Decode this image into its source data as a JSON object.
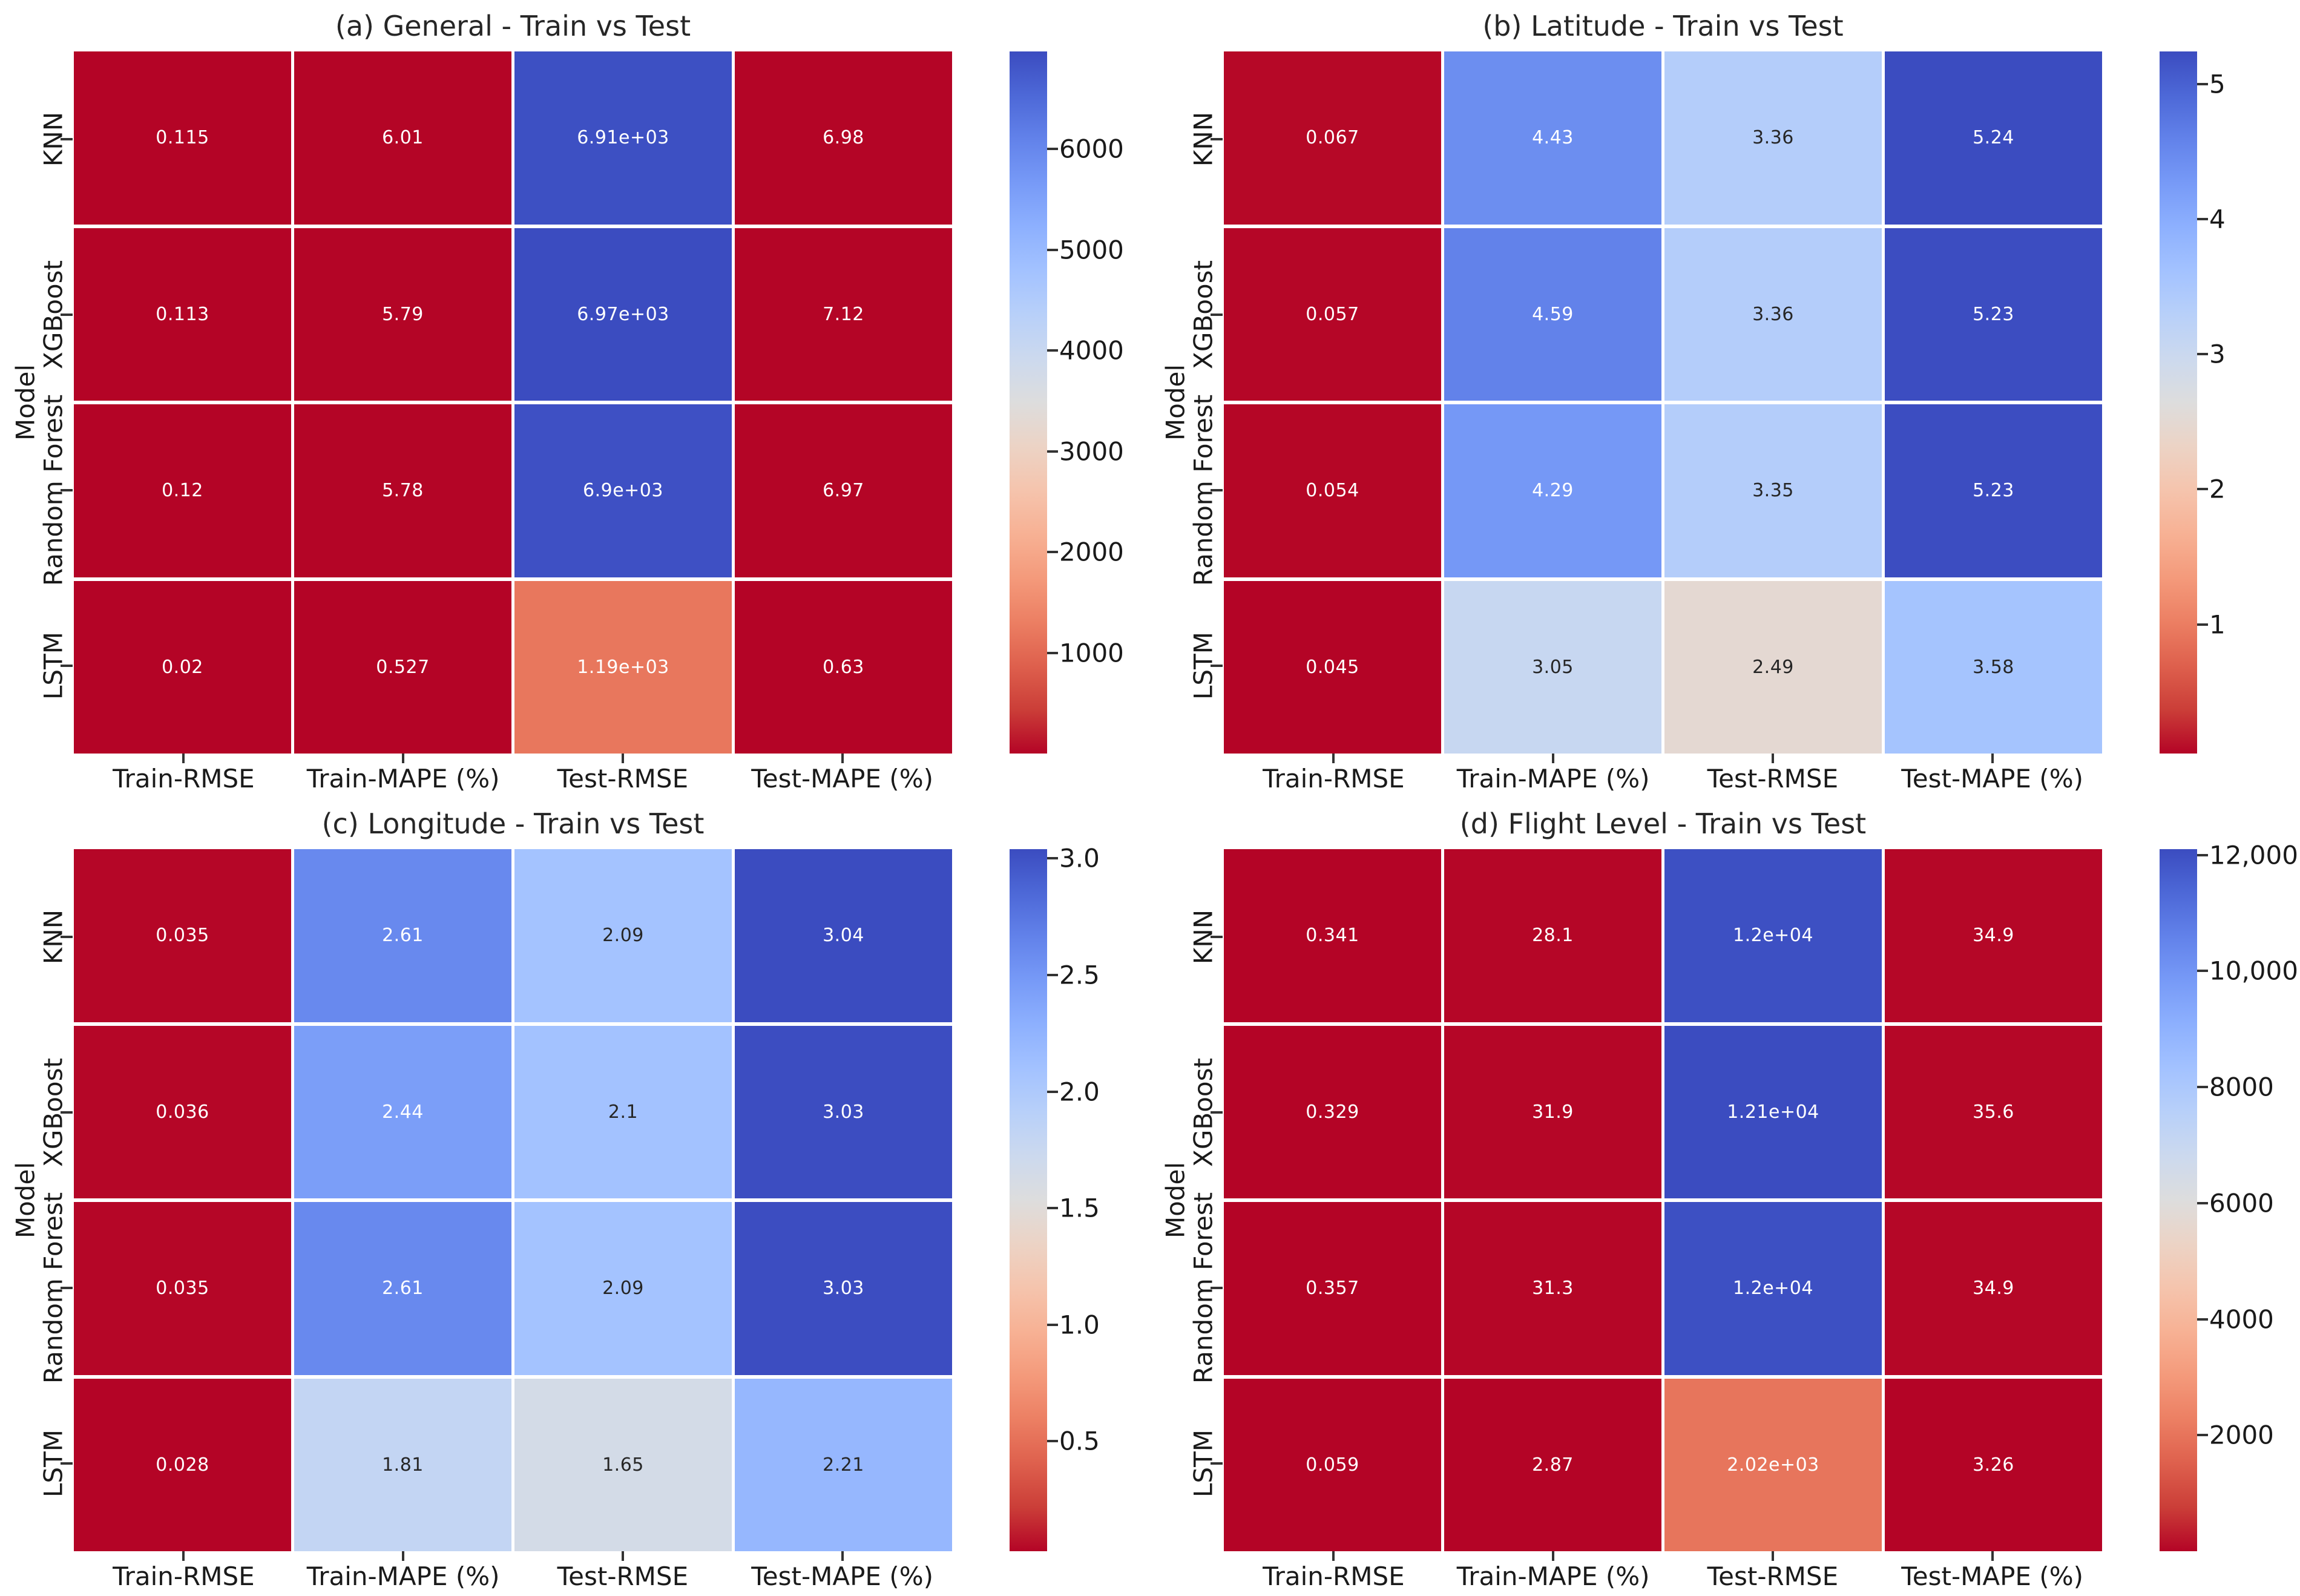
{
  "figure": {
    "background": "#ffffff"
  },
  "shared": {
    "ylabel": "Model",
    "models": [
      "KNN",
      "XGBoost",
      "Random Forest",
      "LSTM"
    ],
    "metrics": [
      "Train-RMSE",
      "Train-MAPE (%)",
      "Test-RMSE",
      "Test-MAPE (%)"
    ]
  },
  "colors": {
    "cmap_low": "#b40426",
    "cmap_mid": "#dddddd",
    "cmap_high": "#3b4cc0",
    "annot_dark": "#262626",
    "annot_light": "#ffffff",
    "tick_color": "#333333"
  },
  "chart_data": [
    {
      "type": "heatmap",
      "panel": "a",
      "title": "(a) General - Train vs Test",
      "ylabel": "Model",
      "rows": [
        "KNN",
        "XGBoost",
        "Random Forest",
        "LSTM"
      ],
      "columns": [
        "Train-RMSE",
        "Train-MAPE (%)",
        "Test-RMSE",
        "Test-MAPE (%)"
      ],
      "values": [
        [
          0.115,
          6.01,
          6910,
          6.98
        ],
        [
          0.113,
          5.79,
          6970,
          7.12
        ],
        [
          0.12,
          5.78,
          6900,
          6.97
        ],
        [
          0.02,
          0.527,
          1190,
          0.63
        ]
      ],
      "labels": [
        [
          "0.115",
          "6.01",
          "6.91e+03",
          "6.98"
        ],
        [
          "0.113",
          "5.79",
          "6.97e+03",
          "7.12"
        ],
        [
          "0.12",
          "5.78",
          "6.9e+03",
          "6.97"
        ],
        [
          "0.02",
          "0.527",
          "1.19e+03",
          "0.63"
        ]
      ],
      "vmin": 0.02,
      "vmax": 6970,
      "colorbar_ticks": [
        1000,
        2000,
        3000,
        4000,
        5000,
        6000
      ],
      "colorbar_tick_labels": [
        "1000",
        "2000",
        "3000",
        "4000",
        "5000",
        "6000"
      ]
    },
    {
      "type": "heatmap",
      "panel": "b",
      "title": "(b) Latitude - Train vs Test",
      "ylabel": "Model",
      "rows": [
        "KNN",
        "XGBoost",
        "Random Forest",
        "LSTM"
      ],
      "columns": [
        "Train-RMSE",
        "Train-MAPE (%)",
        "Test-RMSE",
        "Test-MAPE (%)"
      ],
      "values": [
        [
          0.067,
          4.43,
          3.36,
          5.24
        ],
        [
          0.057,
          4.59,
          3.36,
          5.23
        ],
        [
          0.054,
          4.29,
          3.35,
          5.23
        ],
        [
          0.045,
          3.05,
          2.49,
          3.58
        ]
      ],
      "labels": [
        [
          "0.067",
          "4.43",
          "3.36",
          "5.24"
        ],
        [
          "0.057",
          "4.59",
          "3.36",
          "5.23"
        ],
        [
          "0.054",
          "4.29",
          "3.35",
          "5.23"
        ],
        [
          "0.045",
          "3.05",
          "2.49",
          "3.58"
        ]
      ],
      "vmin": 0.045,
      "vmax": 5.24,
      "colorbar_ticks": [
        1,
        2,
        3,
        4,
        5
      ],
      "colorbar_tick_labels": [
        "1",
        "2",
        "3",
        "4",
        "5"
      ]
    },
    {
      "type": "heatmap",
      "panel": "c",
      "title": "(c) Longitude - Train vs Test",
      "ylabel": "Model",
      "rows": [
        "KNN",
        "XGBoost",
        "Random Forest",
        "LSTM"
      ],
      "columns": [
        "Train-RMSE",
        "Train-MAPE (%)",
        "Test-RMSE",
        "Test-MAPE (%)"
      ],
      "values": [
        [
          0.035,
          2.61,
          2.09,
          3.04
        ],
        [
          0.036,
          2.44,
          2.1,
          3.03
        ],
        [
          0.035,
          2.61,
          2.09,
          3.03
        ],
        [
          0.028,
          1.81,
          1.65,
          2.21
        ]
      ],
      "labels": [
        [
          "0.035",
          "2.61",
          "2.09",
          "3.04"
        ],
        [
          "0.036",
          "2.44",
          "2.1",
          "3.03"
        ],
        [
          "0.035",
          "2.61",
          "2.09",
          "3.03"
        ],
        [
          "0.028",
          "1.81",
          "1.65",
          "2.21"
        ]
      ],
      "vmin": 0.028,
      "vmax": 3.04,
      "colorbar_ticks": [
        0.5,
        1.0,
        1.5,
        2.0,
        2.5,
        3.0
      ],
      "colorbar_tick_labels": [
        "0.5",
        "1.0",
        "1.5",
        "2.0",
        "2.5",
        "3.0"
      ]
    },
    {
      "type": "heatmap",
      "panel": "d",
      "title": "(d) Flight Level - Train vs Test",
      "ylabel": "Model",
      "rows": [
        "KNN",
        "XGBoost",
        "Random Forest",
        "LSTM"
      ],
      "columns": [
        "Train-RMSE",
        "Train-MAPE (%)",
        "Test-RMSE",
        "Test-MAPE (%)"
      ],
      "values": [
        [
          0.341,
          28.1,
          12000,
          34.9
        ],
        [
          0.329,
          31.9,
          12100,
          35.6
        ],
        [
          0.357,
          31.3,
          12000,
          34.9
        ],
        [
          0.059,
          2.87,
          2020,
          3.26
        ]
      ],
      "labels": [
        [
          "0.341",
          "28.1",
          "1.2e+04",
          "34.9"
        ],
        [
          "0.329",
          "31.9",
          "1.21e+04",
          "35.6"
        ],
        [
          "0.357",
          "31.3",
          "1.2e+04",
          "34.9"
        ],
        [
          "0.059",
          "2.87",
          "2.02e+03",
          "3.26"
        ]
      ],
      "vmin": 0.059,
      "vmax": 12100,
      "colorbar_ticks": [
        2000,
        4000,
        6000,
        8000,
        10000,
        12000
      ],
      "colorbar_tick_labels": [
        "2000",
        "4000",
        "6000",
        "8000",
        "10,000",
        "12,000"
      ]
    }
  ]
}
